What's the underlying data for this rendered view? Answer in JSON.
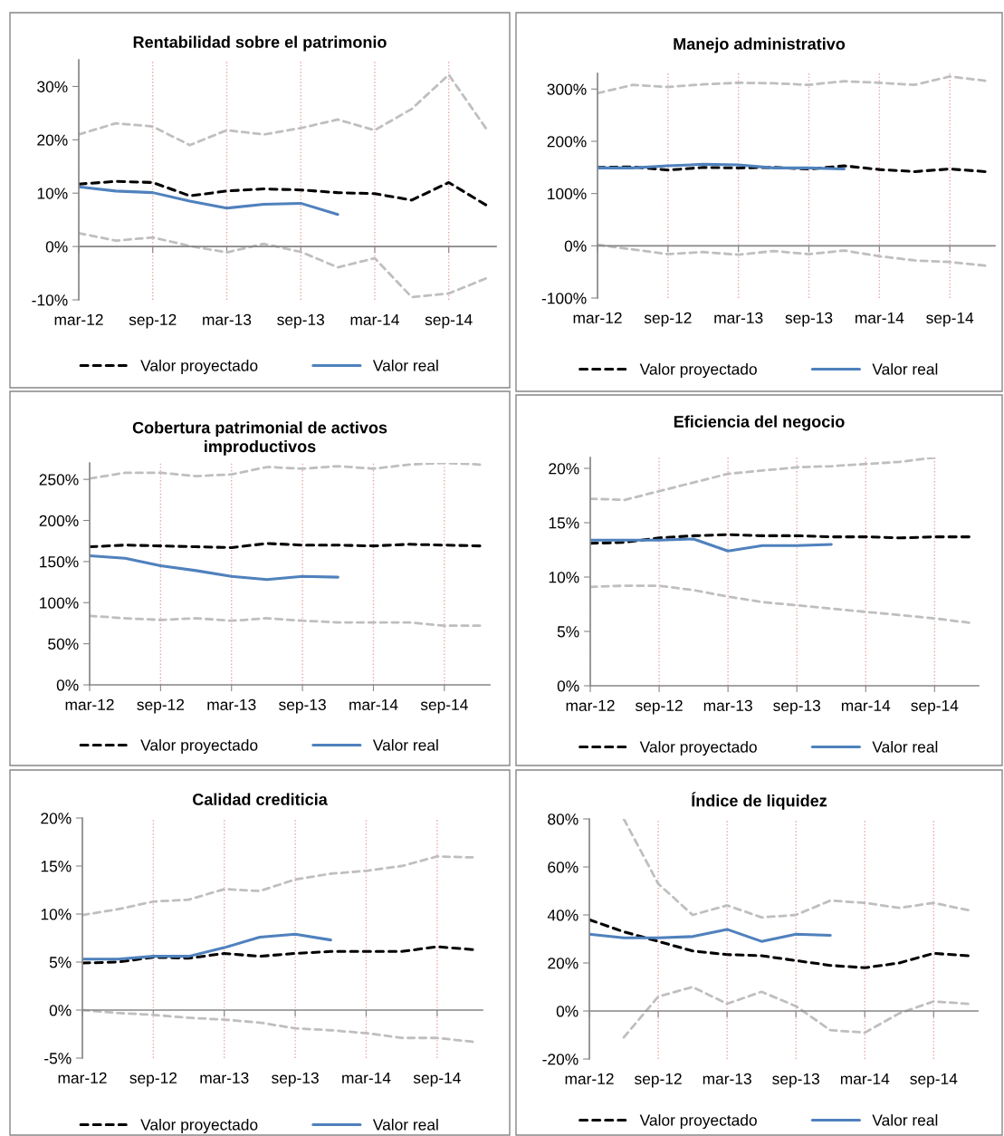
{
  "chart_data": [
    {
      "type": "line",
      "title": "Rentabilidad sobre el patrimonio",
      "categories": [
        "mar-12",
        null,
        "sep-12",
        null,
        "mar-13",
        null,
        "sep-13",
        null,
        "mar-14",
        null,
        "sep-14",
        null
      ],
      "ylim": [
        -10,
        35
      ],
      "yticks": [
        {
          "value": -10,
          "label": "-10%"
        },
        {
          "value": 0,
          "label": "0%"
        },
        {
          "value": 10,
          "label": "10%"
        },
        {
          "value": 20,
          "label": "20%"
        },
        {
          "value": 30,
          "label": "30%"
        }
      ],
      "grid": "x",
      "legend": "bottom",
      "series": [
        {
          "color": "#bfbfbf",
          "line_style": "dashed",
          "values": [
            21.0,
            23.1,
            22.5,
            19.0,
            21.8,
            21.0,
            22.2,
            23.8,
            21.8,
            25.8,
            32.2,
            22.2
          ]
        },
        {
          "color": "#bfbfbf",
          "line_style": "dashed",
          "values": [
            2.5,
            1.1,
            1.7,
            0.1,
            -1.1,
            0.5,
            -1.0,
            -3.9,
            -2.2,
            -9.5,
            -8.8,
            -6.0
          ]
        },
        {
          "name": "Valor proyectado",
          "color": "#000000",
          "line_style": "dashed",
          "values": [
            11.7,
            12.2,
            12.0,
            9.5,
            10.4,
            10.8,
            10.6,
            10.1,
            9.9,
            8.7,
            12.0,
            7.8
          ]
        },
        {
          "name": "Valor real",
          "color": "#4f81bd",
          "line_style": "solid",
          "values": [
            11.2,
            10.4,
            10.1,
            8.5,
            7.2,
            7.9,
            8.1,
            6.0,
            null,
            null,
            null,
            null
          ]
        }
      ]
    },
    {
      "type": "line",
      "title": "Manejo administrativo",
      "categories": [
        "mar-12",
        null,
        "sep-12",
        null,
        "mar-13",
        null,
        "sep-13",
        null,
        "mar-14",
        null,
        "sep-14",
        null
      ],
      "ylim": [
        -100,
        330
      ],
      "yticks": [
        {
          "value": -100,
          "label": "-100%"
        },
        {
          "value": 0,
          "label": "0%"
        },
        {
          "value": 100,
          "label": "100%"
        },
        {
          "value": 200,
          "label": "200%"
        },
        {
          "value": 300,
          "label": "300%"
        }
      ],
      "grid": "x",
      "legend": "bottom",
      "series": [
        {
          "color": "#bfbfbf",
          "line_style": "dashed",
          "values": [
            292,
            308,
            304,
            309,
            312,
            311,
            308,
            315,
            312,
            308,
            324,
            316
          ]
        },
        {
          "color": "#bfbfbf",
          "line_style": "dashed",
          "values": [
            2,
            -7,
            -16,
            -12,
            -17,
            -10,
            -16,
            -9,
            -20,
            -28,
            -31,
            -38
          ]
        },
        {
          "name": "Valor proyectado",
          "color": "#000000",
          "line_style": "dashed",
          "values": [
            150,
            151,
            145,
            150,
            149,
            150,
            147,
            153,
            146,
            142,
            147,
            142
          ]
        },
        {
          "name": "Valor real",
          "color": "#4f81bd",
          "line_style": "solid",
          "values": [
            149,
            149,
            153,
            156,
            155,
            149,
            149,
            147,
            null,
            null,
            null,
            null
          ]
        }
      ]
    },
    {
      "type": "line",
      "title": "Cobertura patrimonial de activos\nimproductivos",
      "categories": [
        "mar-12",
        null,
        "sep-12",
        null,
        "mar-13",
        null,
        "sep-13",
        null,
        "mar-14",
        null,
        "sep-14",
        null
      ],
      "ylim": [
        0,
        270
      ],
      "yticks": [
        {
          "value": 0,
          "label": "0%"
        },
        {
          "value": 50,
          "label": "50%"
        },
        {
          "value": 100,
          "label": "100%"
        },
        {
          "value": 150,
          "label": "150%"
        },
        {
          "value": 200,
          "label": "200%"
        },
        {
          "value": 250,
          "label": "250%"
        }
      ],
      "grid": "x",
      "legend": "bottom",
      "series": [
        {
          "color": "#bfbfbf",
          "line_style": "dashed",
          "values": [
            251,
            258,
            258,
            254,
            256,
            265,
            263,
            266,
            263,
            268,
            270,
            268
          ]
        },
        {
          "color": "#bfbfbf",
          "line_style": "dashed",
          "values": [
            84,
            81,
            79,
            81,
            78,
            81,
            78,
            76,
            76,
            76,
            72,
            72
          ]
        },
        {
          "name": "Valor proyectado",
          "color": "#000000",
          "line_style": "dashed",
          "values": [
            168,
            170,
            169,
            168,
            167,
            172,
            170,
            170,
            169,
            171,
            170,
            169
          ]
        },
        {
          "name": "Valor real",
          "color": "#4f81bd",
          "line_style": "solid",
          "values": [
            157,
            154,
            145,
            139,
            132,
            128,
            132,
            131,
            null,
            null,
            null,
            null
          ]
        }
      ]
    },
    {
      "type": "line",
      "title": "Eficiencia del negocio",
      "categories": [
        "mar-12",
        null,
        "sep-12",
        null,
        "mar-13",
        null,
        "sep-13",
        null,
        "mar-14",
        null,
        "sep-14",
        null
      ],
      "ylim": [
        0,
        21
      ],
      "yticks": [
        {
          "value": 0,
          "label": "0%"
        },
        {
          "value": 5,
          "label": "5%"
        },
        {
          "value": 10,
          "label": "10%"
        },
        {
          "value": 15,
          "label": "15%"
        },
        {
          "value": 20,
          "label": "20%"
        }
      ],
      "grid": "x",
      "legend": "bottom",
      "series": [
        {
          "color": "#bfbfbf",
          "line_style": "dashed",
          "values": [
            17.2,
            17.1,
            17.9,
            18.7,
            19.5,
            19.8,
            20.1,
            20.2,
            20.4,
            20.6,
            21.0,
            null
          ]
        },
        {
          "color": "#bfbfbf",
          "line_style": "dashed",
          "values": [
            9.1,
            9.2,
            9.2,
            8.8,
            8.2,
            7.7,
            7.4,
            7.1,
            6.8,
            6.5,
            6.2,
            5.8
          ]
        },
        {
          "name": "Valor proyectado",
          "color": "#000000",
          "line_style": "dashed",
          "values": [
            13.1,
            13.2,
            13.6,
            13.8,
            13.9,
            13.8,
            13.8,
            13.7,
            13.7,
            13.6,
            13.7,
            13.7
          ]
        },
        {
          "name": "Valor real",
          "color": "#4f81bd",
          "line_style": "solid",
          "values": [
            13.4,
            13.4,
            13.4,
            13.5,
            12.4,
            12.9,
            12.9,
            13.0,
            null,
            null,
            null,
            null
          ]
        }
      ]
    },
    {
      "type": "line",
      "title": "Calidad crediticia",
      "categories": [
        "mar-12",
        null,
        "sep-12",
        null,
        "mar-13",
        null,
        "sep-13",
        null,
        "mar-14",
        null,
        "sep-14",
        null
      ],
      "ylim": [
        -5,
        20
      ],
      "yticks": [
        {
          "value": -5,
          "label": "-5%"
        },
        {
          "value": 0,
          "label": "0%"
        },
        {
          "value": 5,
          "label": "5%"
        },
        {
          "value": 10,
          "label": "10%"
        },
        {
          "value": 15,
          "label": "15%"
        },
        {
          "value": 20,
          "label": "20%"
        }
      ],
      "grid": "x",
      "legend": "bottom",
      "series": [
        {
          "color": "#bfbfbf",
          "line_style": "dashed",
          "values": [
            9.9,
            10.5,
            11.3,
            11.5,
            12.6,
            12.4,
            13.6,
            14.2,
            14.5,
            15.0,
            16.0,
            15.9
          ]
        },
        {
          "color": "#bfbfbf",
          "line_style": "dashed",
          "values": [
            0,
            -0.3,
            -0.5,
            -0.8,
            -1.0,
            -1.3,
            -1.9,
            -2.1,
            -2.4,
            -2.9,
            -2.9,
            -3.3
          ]
        },
        {
          "name": "Valor proyectado",
          "color": "#000000",
          "line_style": "dashed",
          "values": [
            4.9,
            5.0,
            5.5,
            5.4,
            5.9,
            5.6,
            5.9,
            6.1,
            6.1,
            6.1,
            6.6,
            6.3
          ]
        },
        {
          "name": "Valor real",
          "color": "#4f81bd",
          "line_style": "solid",
          "values": [
            5.3,
            5.3,
            5.6,
            5.6,
            6.5,
            7.6,
            7.9,
            7.3,
            null,
            null,
            null,
            null
          ]
        }
      ]
    },
    {
      "type": "line",
      "title": "Índice de liquidez",
      "categories": [
        "mar-12",
        null,
        "sep-12",
        null,
        "mar-13",
        null,
        "sep-13",
        null,
        "mar-14",
        null,
        "sep-14",
        null
      ],
      "ylim": [
        -20,
        80
      ],
      "yticks": [
        {
          "value": -20,
          "label": "-20%"
        },
        {
          "value": 0,
          "label": "0%"
        },
        {
          "value": 20,
          "label": "20%"
        },
        {
          "value": 40,
          "label": "40%"
        },
        {
          "value": 60,
          "label": "60%"
        },
        {
          "value": 80,
          "label": "80%"
        }
      ],
      "grid": "x",
      "legend": "bottom",
      "series": [
        {
          "color": "#bfbfbf",
          "line_style": "dashed",
          "values": [
            null,
            80,
            53,
            40,
            44,
            39,
            40,
            46,
            45,
            43,
            45,
            42
          ]
        },
        {
          "color": "#bfbfbf",
          "line_style": "dashed",
          "values": [
            null,
            -11,
            6,
            10,
            3,
            8,
            2,
            -8,
            -9,
            -1,
            4,
            3
          ]
        },
        {
          "name": "Valor proyectado",
          "color": "#000000",
          "line_style": "dashed",
          "values": [
            38,
            33,
            29,
            25,
            23.5,
            23,
            21,
            19,
            18,
            20,
            24,
            23
          ]
        },
        {
          "name": "Valor real",
          "color": "#4f81bd",
          "line_style": "solid",
          "values": [
            32,
            30.5,
            30.5,
            31,
            34,
            29,
            32,
            31.5,
            null,
            null,
            null,
            null
          ]
        }
      ]
    }
  ]
}
